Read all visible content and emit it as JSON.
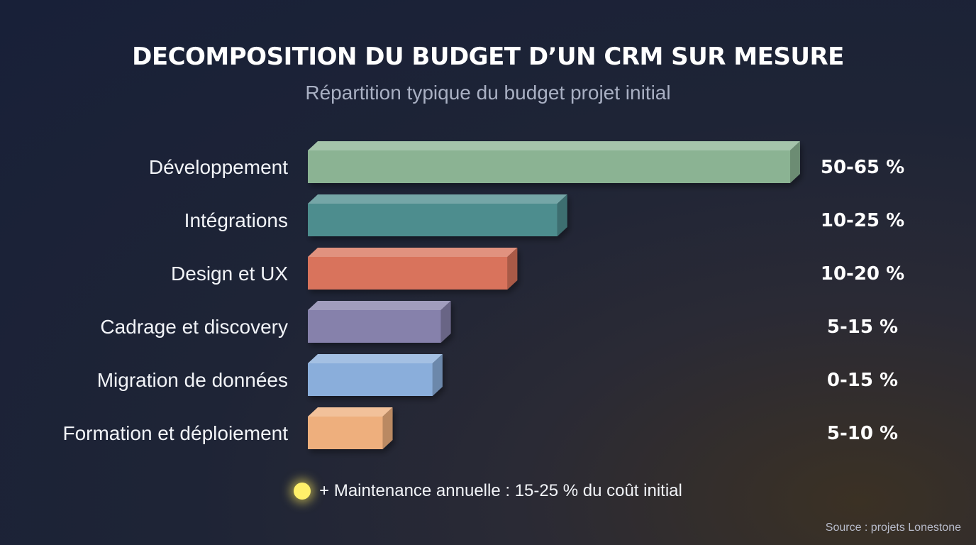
{
  "chart_data": {
    "type": "bar",
    "orientation": "horizontal",
    "title": "DECOMPOSITION DU BUDGET D’UN CRM SUR MESURE",
    "subtitle": "Répartition typique du budget projet initial",
    "categories": [
      "Développement",
      "Intégrations",
      "Design et UX",
      "Cadrage et discovery",
      "Migration de données",
      "Formation et déploiement"
    ],
    "value_labels": [
      "50-65 %",
      "10-25 %",
      "10-20 %",
      "5-15 %",
      "0-15 %",
      "5-10 %"
    ],
    "values": [
      58,
      30,
      24,
      16,
      15,
      9
    ],
    "colors": [
      "#8bb393",
      "#4e8d8e",
      "#d9735b",
      "#8681ab",
      "#8aaedb",
      "#eeaf7d"
    ],
    "xlim": [
      0,
      58
    ],
    "grid": false,
    "legend": "none"
  },
  "note": {
    "text": "+ Maintenance annuelle : 15-25 % du coût initial",
    "icon": "glowing-dot-icon",
    "icon_color": "#fff06a"
  },
  "source": "Source : projets Lonestone"
}
